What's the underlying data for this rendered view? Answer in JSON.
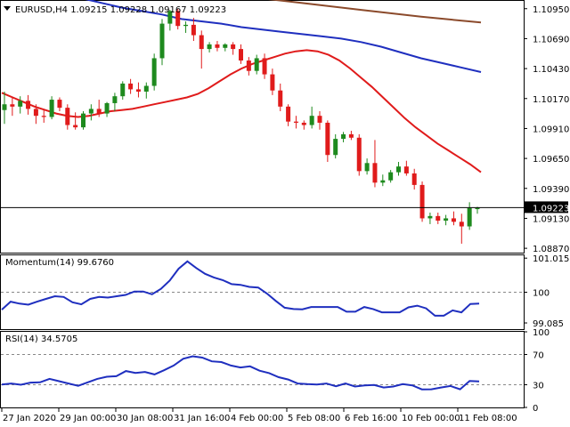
{
  "header": {
    "symbol_info": "EURUSD,H4  1.09215 1.09228 1.09167 1.09223"
  },
  "colors": {
    "bull": "#1e8a1e",
    "bear": "#e01b1b",
    "ma_fast": "#e01b1b",
    "ma_mid": "#1f2fbf",
    "ma_slow": "#8b4a2b",
    "indicator_line": "#1f2fbf",
    "current_price_box": "#000000",
    "grid": "#888888"
  },
  "chart_data": [
    {
      "type": "candlestick",
      "title": "EURUSD,H4  1.09215 1.09228 1.09167 1.09223",
      "price_ticks": [
        "1.10950",
        "1.10690",
        "1.10430",
        "1.10170",
        "1.09910",
        "1.09650",
        "1.09390",
        "1.09130",
        "1.08870"
      ],
      "ylim": [
        1.0884,
        1.1101
      ],
      "current_price": "1.09223",
      "candles": [
        {
          "o": 1.1007,
          "h": 1.1023,
          "l": 1.0995,
          "c": 1.1012
        },
        {
          "o": 1.1012,
          "h": 1.1018,
          "l": 1.1002,
          "c": 1.101
        },
        {
          "o": 1.101,
          "h": 1.1019,
          "l": 1.1004,
          "c": 1.1015
        },
        {
          "o": 1.1015,
          "h": 1.102,
          "l": 1.1003,
          "c": 1.1008
        },
        {
          "o": 1.1008,
          "h": 1.1012,
          "l": 1.0995,
          "c": 1.1002
        },
        {
          "o": 1.1002,
          "h": 1.1008,
          "l": 1.0996,
          "c": 1.1001
        },
        {
          "o": 1.1001,
          "h": 1.1019,
          "l": 1.0999,
          "c": 1.1016
        },
        {
          "o": 1.1016,
          "h": 1.1018,
          "l": 1.1006,
          "c": 1.1009
        },
        {
          "o": 1.1009,
          "h": 1.1012,
          "l": 1.099,
          "c": 1.0994
        },
        {
          "o": 1.0994,
          "h": 1.1005,
          "l": 1.099,
          "c": 1.0992
        },
        {
          "o": 1.0992,
          "h": 1.1006,
          "l": 1.099,
          "c": 1.1004
        },
        {
          "o": 1.1004,
          "h": 1.1012,
          "l": 1.0998,
          "c": 1.1008
        },
        {
          "o": 1.1008,
          "h": 1.1016,
          "l": 1.1001,
          "c": 1.1004
        },
        {
          "o": 1.1004,
          "h": 1.1014,
          "l": 1.1001,
          "c": 1.1013
        },
        {
          "o": 1.1013,
          "h": 1.1022,
          "l": 1.1006,
          "c": 1.1019
        },
        {
          "o": 1.1019,
          "h": 1.1032,
          "l": 1.1016,
          "c": 1.103
        },
        {
          "o": 1.103,
          "h": 1.1034,
          "l": 1.1021,
          "c": 1.1025
        },
        {
          "o": 1.1025,
          "h": 1.1031,
          "l": 1.1018,
          "c": 1.1023
        },
        {
          "o": 1.1023,
          "h": 1.1031,
          "l": 1.1017,
          "c": 1.1028
        },
        {
          "o": 1.1028,
          "h": 1.1056,
          "l": 1.1024,
          "c": 1.1052
        },
        {
          "o": 1.1052,
          "h": 1.1086,
          "l": 1.1046,
          "c": 1.1082
        },
        {
          "o": 1.1082,
          "h": 1.1094,
          "l": 1.1076,
          "c": 1.1093
        },
        {
          "o": 1.1093,
          "h": 1.1095,
          "l": 1.1077,
          "c": 1.108
        },
        {
          "o": 1.108,
          "h": 1.1084,
          "l": 1.1074,
          "c": 1.1081
        },
        {
          "o": 1.1081,
          "h": 1.1087,
          "l": 1.1067,
          "c": 1.1072
        },
        {
          "o": 1.1072,
          "h": 1.1076,
          "l": 1.1043,
          "c": 1.106
        },
        {
          "o": 1.106,
          "h": 1.1066,
          "l": 1.1057,
          "c": 1.1064
        },
        {
          "o": 1.1064,
          "h": 1.1067,
          "l": 1.1058,
          "c": 1.1061
        },
        {
          "o": 1.1061,
          "h": 1.1065,
          "l": 1.1058,
          "c": 1.1064
        },
        {
          "o": 1.1064,
          "h": 1.1066,
          "l": 1.1055,
          "c": 1.106
        },
        {
          "o": 1.106,
          "h": 1.1064,
          "l": 1.1047,
          "c": 1.105
        },
        {
          "o": 1.105,
          "h": 1.1053,
          "l": 1.1037,
          "c": 1.1041
        },
        {
          "o": 1.1041,
          "h": 1.1055,
          "l": 1.1038,
          "c": 1.1052
        },
        {
          "o": 1.1052,
          "h": 1.1056,
          "l": 1.1034,
          "c": 1.1038
        },
        {
          "o": 1.1038,
          "h": 1.1043,
          "l": 1.102,
          "c": 1.1024
        },
        {
          "o": 1.1024,
          "h": 1.103,
          "l": 1.1006,
          "c": 1.101
        },
        {
          "o": 1.101,
          "h": 1.1012,
          "l": 1.0993,
          "c": 1.0997
        },
        {
          "o": 1.0997,
          "h": 1.1002,
          "l": 1.0991,
          "c": 1.0996
        },
        {
          "o": 1.0996,
          "h": 1.0998,
          "l": 1.099,
          "c": 1.0994
        },
        {
          "o": 1.0994,
          "h": 1.101,
          "l": 1.0991,
          "c": 1.1002
        },
        {
          "o": 1.1002,
          "h": 1.1006,
          "l": 1.099,
          "c": 1.0996
        },
        {
          "o": 1.0996,
          "h": 1.0998,
          "l": 1.0962,
          "c": 1.0968
        },
        {
          "o": 1.0968,
          "h": 1.0986,
          "l": 1.0965,
          "c": 1.0982
        },
        {
          "o": 1.0982,
          "h": 1.0988,
          "l": 1.0979,
          "c": 1.0986
        },
        {
          "o": 1.0986,
          "h": 1.0989,
          "l": 1.0981,
          "c": 1.0983
        },
        {
          "o": 1.0983,
          "h": 1.0986,
          "l": 1.095,
          "c": 1.0954
        },
        {
          "o": 1.0954,
          "h": 1.0965,
          "l": 1.0951,
          "c": 1.0961
        },
        {
          "o": 1.0961,
          "h": 1.0981,
          "l": 1.094,
          "c": 1.0944
        },
        {
          "o": 1.0944,
          "h": 1.0951,
          "l": 1.0941,
          "c": 1.0946
        },
        {
          "o": 1.0946,
          "h": 1.0955,
          "l": 1.0944,
          "c": 1.0953
        },
        {
          "o": 1.0953,
          "h": 1.0962,
          "l": 1.095,
          "c": 1.0958
        },
        {
          "o": 1.0958,
          "h": 1.0963,
          "l": 1.095,
          "c": 1.0952
        },
        {
          "o": 1.0952,
          "h": 1.0956,
          "l": 1.0938,
          "c": 1.0942
        },
        {
          "o": 1.0942,
          "h": 1.0945,
          "l": 1.091,
          "c": 1.0913
        },
        {
          "o": 1.0913,
          "h": 1.0918,
          "l": 1.0908,
          "c": 1.0915
        },
        {
          "o": 1.0915,
          "h": 1.0918,
          "l": 1.0908,
          "c": 1.0911
        },
        {
          "o": 1.0911,
          "h": 1.0916,
          "l": 1.0907,
          "c": 1.0913
        },
        {
          "o": 1.0913,
          "h": 1.0919,
          "l": 1.0907,
          "c": 1.091
        },
        {
          "o": 1.091,
          "h": 1.0917,
          "l": 1.0891,
          "c": 1.0906
        },
        {
          "o": 1.0906,
          "h": 1.0927,
          "l": 1.0903,
          "c": 1.0922
        },
        {
          "o": 1.0921,
          "h": 1.0923,
          "l": 1.0917,
          "c": 1.0922
        }
      ],
      "moving_averages": [
        {
          "color_key": "ma_fast",
          "values": [
            1.1022,
            1.1018,
            1.1014,
            1.101,
            1.1007,
            1.1004,
            1.1002,
            1.1001,
            1.1002,
            1.1004,
            1.1006,
            1.1007,
            1.1008,
            1.101,
            1.1012,
            1.1014,
            1.1016,
            1.1018,
            1.1021,
            1.1026,
            1.1032,
            1.1038,
            1.1043,
            1.1047,
            1.105,
            1.1053,
            1.1056,
            1.1058,
            1.1059,
            1.1058,
            1.1055,
            1.105,
            1.1043,
            1.1035,
            1.1027,
            1.1018,
            1.1009,
            1.1,
            1.0992,
            1.0985,
            1.0978,
            1.0972,
            1.0966,
            1.096,
            1.0953
          ]
        },
        {
          "color_key": "ma_mid",
          "values": [
            1.1124,
            1.1118,
            1.1113,
            1.1108,
            1.1104,
            1.11,
            1.1096,
            1.1093,
            1.109,
            1.1086,
            1.1084,
            1.1082,
            1.1079,
            1.1077,
            1.1075,
            1.1073,
            1.1071,
            1.1069,
            1.1066,
            1.1062,
            1.1057,
            1.1052,
            1.1048,
            1.1044,
            1.104
          ]
        },
        {
          "color_key": "ma_slow",
          "values": [
            1.1128,
            1.1124,
            1.1118,
            1.1112,
            1.1106,
            1.11,
            1.1094,
            1.1088,
            1.1083
          ]
        }
      ],
      "time_labels": [
        "27 Jan 2020",
        "29 Jan 00:00",
        "30 Jan 08:00",
        "31 Jan 16:00",
        "4 Feb 00:00",
        "5 Feb 08:00",
        "6 Feb 16:00",
        "10 Feb 00:00",
        "11 Feb 08:00"
      ]
    },
    {
      "type": "line",
      "title": "Momentum(14) 99.6760",
      "ticks": [
        "101.0157",
        "100",
        "99.085"
      ],
      "ylim": [
        98.9,
        101.1
      ],
      "reference_level": 100,
      "values": [
        99.48,
        99.72,
        99.66,
        99.63,
        99.72,
        99.8,
        99.88,
        99.86,
        99.7,
        99.64,
        99.8,
        99.86,
        99.84,
        99.88,
        99.92,
        100.02,
        100.02,
        99.94,
        100.1,
        100.35,
        100.7,
        100.92,
        100.72,
        100.55,
        100.44,
        100.36,
        100.24,
        100.22,
        100.16,
        100.14,
        99.96,
        99.74,
        99.54,
        99.5,
        99.49,
        99.56,
        99.56,
        99.56,
        99.56,
        99.42,
        99.42,
        99.56,
        99.5,
        99.4,
        99.4,
        99.4,
        99.55,
        99.6,
        99.52,
        99.3,
        99.3,
        99.46,
        99.4,
        99.65,
        99.66
      ]
    },
    {
      "type": "line",
      "title": "RSI(14) 34.5705",
      "ticks": [
        "100",
        "70",
        "30",
        "0"
      ],
      "ylim": [
        0,
        100
      ],
      "reference_levels": [
        70,
        30
      ],
      "values": [
        30.4,
        31.6,
        30.0,
        32.8,
        33.2,
        37.8,
        34.7,
        31.6,
        28.6,
        33.2,
        37.8,
        40.6,
        41.3,
        48.1,
        45.7,
        46.9,
        43.6,
        49.2,
        55.4,
        64.4,
        67.6,
        65.9,
        60.9,
        60.0,
        55.4,
        52.8,
        54.3,
        48.6,
        45.4,
        40.0,
        36.9,
        31.6,
        30.8,
        30.4,
        31.6,
        28.0,
        31.6,
        27.6,
        29.2,
        29.6,
        26.4,
        27.6,
        30.8,
        29.2,
        23.9,
        24.0,
        26.3,
        28.3,
        24.0,
        35.0,
        34.5
      ]
    }
  ]
}
